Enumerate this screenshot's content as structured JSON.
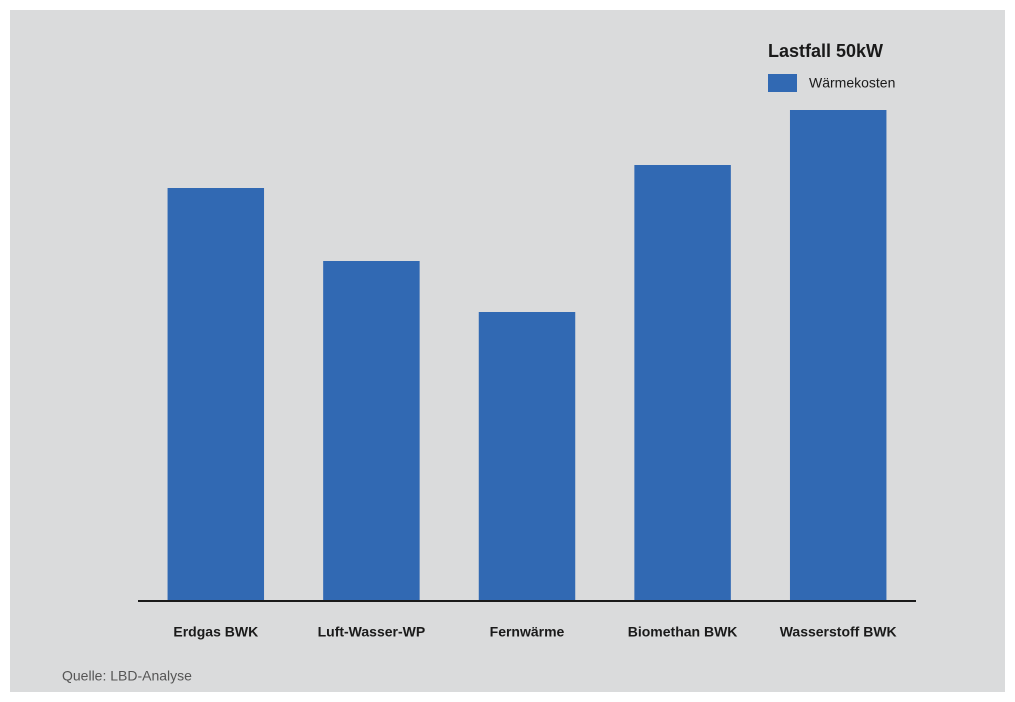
{
  "chart_data": {
    "type": "bar",
    "legend_title": "Lastfall 50kW",
    "legend": "top-right",
    "categories": [
      "Erdgas BWK",
      "Luft-Wasser-WP",
      "Fernwärme",
      "Biomethan BWK",
      "Wasserstoff BWK"
    ],
    "series": [
      {
        "name": "Wärmekosten",
        "color": "#3169b3",
        "values": [
          413,
          340,
          289,
          436,
          491
        ]
      }
    ],
    "ylim": [
      0,
      500
    ],
    "source": "Quelle: LBD-Analyse"
  }
}
